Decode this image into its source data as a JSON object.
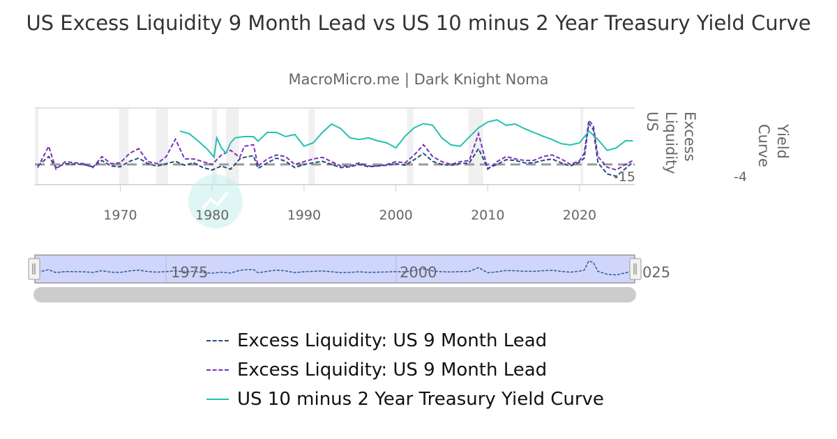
{
  "title": "US Excess Liquidity 9 Month Lead vs US 10 minus 2 Year Treasury Yield Curve",
  "subtitle": "MacroMicro.me | Dark Knight Noma",
  "watermark": "MacroMicro",
  "chart_data": {
    "type": "line",
    "xlim": [
      1960.7,
      2026
    ],
    "x_ticks": [
      "1970",
      "1980",
      "1990",
      "2000",
      "2010",
      "2020"
    ],
    "y_axes": [
      {
        "label": "Excess Liquidity US",
        "tick_labels": [
          "-15"
        ],
        "min": -15,
        "reference_line": 0
      },
      {
        "label": "Yield Curve",
        "tick_labels": [
          "-4"
        ],
        "min": -4
      }
    ],
    "recession_bands": [
      [
        1960.7,
        1961.1
      ],
      [
        1969.9,
        1970.9
      ],
      [
        1973.9,
        1975.2
      ],
      [
        1980.0,
        1980.5
      ],
      [
        1981.5,
        1982.9
      ],
      [
        1990.5,
        1991.2
      ],
      [
        2001.2,
        2001.9
      ],
      [
        2007.9,
        2009.5
      ],
      [
        2020.1,
        2020.4
      ]
    ],
    "series": [
      {
        "name": "Excess Liquidity: US 9 Month Lead",
        "axis": 0,
        "color": "#1f4e79",
        "dash": true,
        "x": [
          1961,
          1962.2,
          1963,
          1964,
          1966,
          1967,
          1968,
          1969,
          1970,
          1971,
          1972,
          1973,
          1974,
          1975,
          1976,
          1977,
          1978,
          1979,
          1980,
          1981,
          1982,
          1983,
          1983.5,
          1984.5,
          1985,
          1986,
          1987,
          1988,
          1989,
          1990,
          1991,
          1992,
          1993,
          1994,
          1995,
          1996,
          1997,
          1998,
          1999,
          2000,
          2001,
          2002,
          2003,
          2004,
          2005,
          2006,
          2007,
          2008,
          2009,
          2010,
          2011,
          2012,
          2013,
          2014,
          2015,
          2016,
          2017,
          2018,
          2019,
          2020,
          2020.5,
          2021,
          2021.5,
          2022,
          2023,
          2024,
          2025,
          2025.8
        ],
        "y": [
          -2,
          10,
          -4,
          1,
          0,
          -3,
          5,
          -2,
          -3,
          4,
          8,
          1,
          -2,
          1,
          4,
          -1,
          2,
          -4,
          -7,
          -2,
          -6,
          7,
          9,
          11,
          -5,
          2,
          8,
          4,
          -4,
          0,
          2,
          4,
          0,
          -4,
          -3,
          0,
          -3,
          -2,
          -1,
          1,
          -1,
          6,
          14,
          4,
          0,
          -1,
          1,
          2,
          20,
          -5,
          0,
          6,
          5,
          2,
          2,
          5,
          7,
          2,
          -2,
          3,
          8,
          52,
          44,
          2,
          -12,
          -15,
          -5,
          3
        ]
      },
      {
        "name": "Excess Liquidity: US 9 Month Lead",
        "axis": 0,
        "color": "#7b2fbe",
        "dash": true,
        "x": [
          1961,
          1962.2,
          1963,
          1964,
          1966,
          1967,
          1968,
          1969,
          1970,
          1971,
          1972,
          1973,
          1974,
          1975,
          1976,
          1977,
          1978,
          1979,
          1980,
          1981,
          1982,
          1983,
          1983.5,
          1984.5,
          1985,
          1986,
          1987,
          1988,
          1989,
          1990,
          1991,
          1992,
          1993,
          1994,
          1995,
          1996,
          1997,
          1998,
          1999,
          2000,
          2001,
          2002,
          2003,
          2004,
          2005,
          2006,
          2007,
          2008,
          2009,
          2010,
          2011,
          2012,
          2013,
          2014,
          2015,
          2016,
          2017,
          2018,
          2019,
          2020,
          2020.5,
          2021,
          2021.5,
          2022,
          2023,
          2024,
          2025,
          2025.8
        ],
        "y": [
          -4,
          23,
          -6,
          3.5,
          1,
          -4,
          10,
          1,
          2,
          14,
          20,
          3.5,
          1,
          10,
          32,
          7,
          7,
          3.5,
          0,
          12,
          18,
          9,
          23,
          25,
          -2,
          7,
          12,
          10,
          0,
          3.5,
          7,
          9,
          3.5,
          -2,
          -2,
          2,
          -2,
          -2,
          0,
          3.5,
          2,
          12,
          25,
          10,
          3.5,
          0,
          3.5,
          5,
          39,
          -6,
          3.5,
          10,
          7,
          5,
          5,
          10,
          12,
          7,
          0,
          5,
          14,
          56,
          49,
          10,
          -3.5,
          -7,
          0,
          5
        ]
      },
      {
        "name": "US 10 minus 2 Year Treasury Yield Curve",
        "axis": 1,
        "color": "#20c2b0",
        "dash": false,
        "x": [
          1976.5,
          1977.5,
          1978.5,
          1979.5,
          1980.2,
          1980.5,
          1981,
          1981.5,
          1982,
          1982.5,
          1983.5,
          1984.5,
          1985,
          1986,
          1987,
          1988,
          1989,
          1990,
          1991,
          1992,
          1993,
          1994,
          1995,
          1996,
          1997,
          1998,
          1999,
          2000,
          2001,
          2002,
          2003,
          2004,
          2005,
          2006,
          2007,
          2008,
          2009,
          2010,
          2011,
          2012,
          2013,
          2014,
          2015,
          2016,
          2017,
          2018,
          2019,
          2020,
          2021,
          2022,
          2023,
          2024,
          2025,
          2025.8
        ],
        "y": [
          1.4,
          1.1,
          0.2,
          -0.8,
          -1.7,
          0.6,
          -0.6,
          -1.25,
          0,
          0.6,
          0.75,
          0.75,
          0.2,
          1.25,
          1.25,
          0.75,
          1,
          -0.4,
          0,
          1.25,
          2.25,
          1.7,
          0.6,
          0.4,
          0.6,
          0.25,
          0,
          -0.6,
          0.8,
          1.8,
          2.3,
          2.1,
          0.6,
          -0.25,
          -0.4,
          0.7,
          1.8,
          2.5,
          2.75,
          2.1,
          2.25,
          1.7,
          1.25,
          0.8,
          0.4,
          -0.1,
          -0.25,
          0,
          1.4,
          0.4,
          -0.9,
          -0.6,
          0.25,
          0.25
        ]
      }
    ],
    "navigator": {
      "tick_labels": [
        "1975",
        "2000",
        "025"
      ],
      "series_index": 0
    }
  },
  "legend": [
    {
      "label": "Excess Liquidity: US 9 Month Lead",
      "color": "#1f4e79",
      "dash": true
    },
    {
      "label": "Excess Liquidity: US 9 Month Lead",
      "color": "#7b2fbe",
      "dash": true
    },
    {
      "label": "US 10 minus 2 Year Treasury Yield Curve",
      "color": "#20c2b0",
      "dash": false
    }
  ]
}
